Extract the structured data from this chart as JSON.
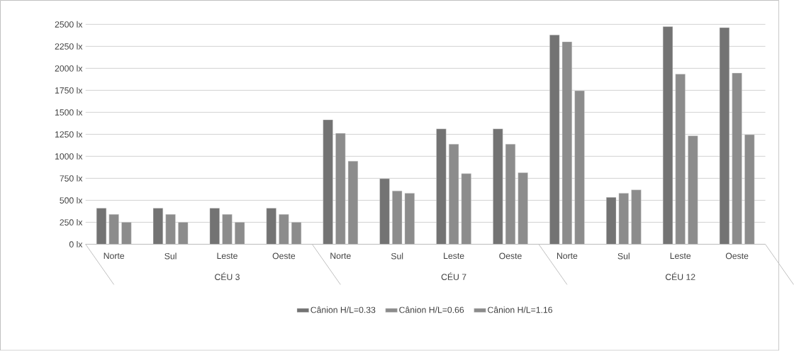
{
  "chart_data": {
    "type": "bar",
    "categories": [
      "Norte",
      "Sul",
      "Leste",
      "Oeste",
      "Norte",
      "Sul",
      "Leste",
      "Oeste",
      "Norte",
      "Sul",
      "Leste",
      "Oeste"
    ],
    "annotations": [
      "CÉU 3",
      "CÉU 7",
      "CÉU 12"
    ],
    "series": [
      {
        "name": "Cânion H/L=0.33",
        "color": "#737373",
        "values": [
          410,
          410,
          410,
          410,
          1415,
          745,
          1312,
          1312,
          2379,
          533,
          2474,
          2463
        ]
      },
      {
        "name": "Cânion H/L=0.66",
        "color": "#8c8c8c",
        "values": [
          340,
          340,
          340,
          340,
          1262,
          607,
          1138,
          1138,
          2302,
          581,
          1935,
          1946
        ]
      },
      {
        "name": "Cânion H/L=1.16",
        "color": "#8c8c8c",
        "values": [
          250,
          250,
          250,
          250,
          945,
          581,
          803,
          813,
          1745,
          618,
          1233,
          1246
        ]
      }
    ],
    "ylim": [
      0,
      2500
    ],
    "yticks": [
      {
        "value": 0,
        "label": "0 lx"
      },
      {
        "value": 250,
        "label": "250 lx"
      },
      {
        "value": 500,
        "label": "500 lx"
      },
      {
        "value": 750,
        "label": "750 lx"
      },
      {
        "value": 1000,
        "label": "1000 lx"
      },
      {
        "value": 1250,
        "label": "1250 lx"
      },
      {
        "value": 1500,
        "label": "1500 lx"
      },
      {
        "value": 1750,
        "label": "1750 lx"
      },
      {
        "value": 2000,
        "label": "2000 lx"
      },
      {
        "value": 2250,
        "label": "2250 lx"
      },
      {
        "value": 2500,
        "label": "2500 lx"
      }
    ],
    "grid": "y",
    "legend": "bottom"
  }
}
